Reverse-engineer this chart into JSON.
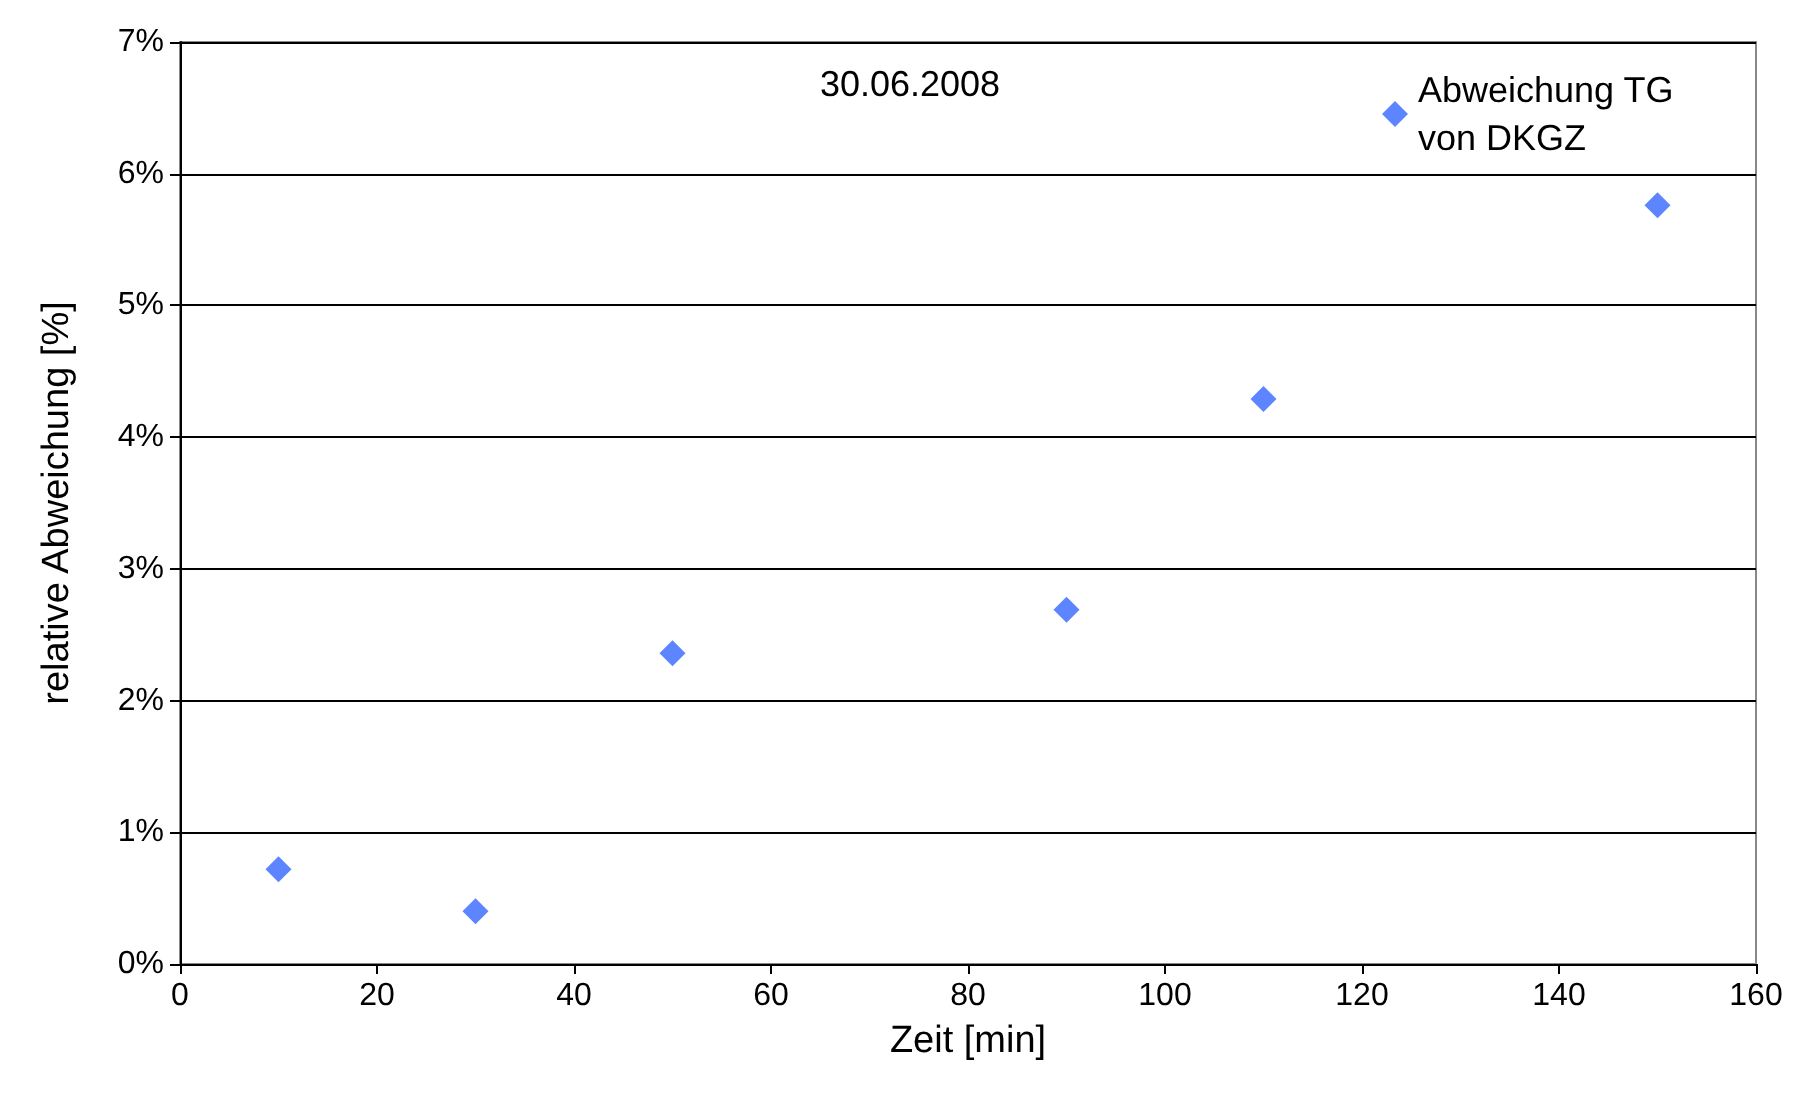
{
  "chart_data": {
    "type": "scatter",
    "title": "30.06.2008",
    "xlabel": "Zeit [min]",
    "ylabel": "relative Abweichung [%]",
    "x": [
      10,
      30,
      50,
      90,
      110,
      150
    ],
    "series": [
      {
        "name": "Abweichung TG von DKGZ",
        "color": "#3366ff",
        "values": [
          0.72,
          0.4,
          2.36,
          2.69,
          4.29,
          5.76
        ]
      }
    ],
    "xlim": [
      0,
      160
    ],
    "xticks": [
      0,
      20,
      40,
      60,
      80,
      100,
      120,
      140,
      160
    ],
    "ylim": [
      0,
      7
    ],
    "yticks": [
      {
        "value": 0,
        "label": "0%"
      },
      {
        "value": 1,
        "label": "1%"
      },
      {
        "value": 2,
        "label": "2%"
      },
      {
        "value": 3,
        "label": "3%"
      },
      {
        "value": 4,
        "label": "4%"
      },
      {
        "value": 5,
        "label": "5%"
      },
      {
        "value": 6,
        "label": "6%"
      },
      {
        "value": 7,
        "label": "7%"
      }
    ],
    "grid": "y",
    "legend": "top right",
    "marker": "diamond"
  }
}
